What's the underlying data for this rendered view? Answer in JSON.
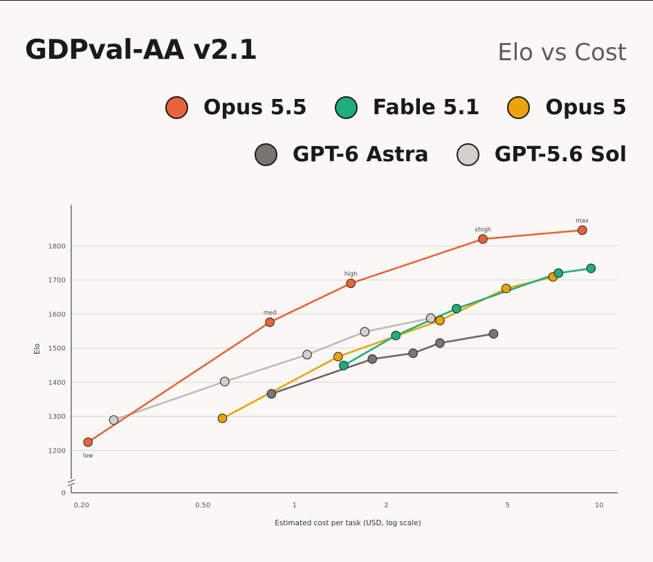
{
  "header": {
    "title": "GDPval-AA v2.1",
    "subtitle": "Elo vs Cost"
  },
  "legend": [
    {
      "name": "Opus 5.5",
      "color": "#e8643a"
    },
    {
      "name": "Fable 5.1",
      "color": "#1fae7a"
    },
    {
      "name": "Opus 5",
      "color": "#eca20a"
    },
    {
      "name": "GPT-6 Astra",
      "color": "#797672"
    },
    {
      "name": "GPT-5.6 Sol",
      "color": "#d2d0ca"
    }
  ],
  "chart_data": {
    "type": "line",
    "title": "GDPval-AA v2.1",
    "subtitle": "Elo vs Cost",
    "xlabel": "Estimated cost per task (USD, log scale)",
    "ylabel": "Elo",
    "x_scale": "log",
    "xlim": [
      0.185,
      11.5
    ],
    "ylim": [
      1100,
      1900
    ],
    "x_ticks": [
      0.2,
      0.5,
      1,
      2,
      5,
      10
    ],
    "x_tick_labels": [
      "0.20",
      "0.50",
      "1",
      "2",
      "5",
      "10"
    ],
    "y_ticks": [
      1200,
      1300,
      1400,
      1500,
      1600,
      1700,
      1800
    ],
    "y_tick_labels": [
      "1200",
      "1300",
      "1400",
      "1500",
      "1600",
      "1700",
      "1800"
    ],
    "y_zero_label": "0",
    "axis_break": true,
    "grid": "horizontal",
    "legend_position": "top-right",
    "series": [
      {
        "name": "Opus 5.5",
        "color": "#e8643a",
        "line_color": "#e8643a",
        "x": [
          0.21,
          0.83,
          1.53,
          4.15,
          8.8
        ],
        "y": [
          1224,
          1576,
          1690,
          1820,
          1846
        ],
        "point_labels": [
          "low",
          "med",
          "high",
          "xhigh",
          "max"
        ]
      },
      {
        "name": "Fable 5.1",
        "color": "#1fae7a",
        "line_color": "#1fae7a",
        "x": [
          1.45,
          2.15,
          3.4,
          7.35,
          9.4
        ],
        "y": [
          1449,
          1537,
          1616,
          1720,
          1734
        ]
      },
      {
        "name": "Opus 5",
        "color": "#eca20a",
        "line_color": "#eca20a",
        "x": [
          0.58,
          1.39,
          3.0,
          4.95,
          7.05
        ],
        "y": [
          1294,
          1475,
          1581,
          1675,
          1709
        ]
      },
      {
        "name": "GPT-6 Astra",
        "color": "#797672",
        "line_color": "#6a6763",
        "x": [
          0.84,
          1.8,
          2.45,
          3.0,
          4.5
        ],
        "y": [
          1366,
          1468,
          1485,
          1515,
          1542
        ]
      },
      {
        "name": "GPT-5.6 Sol",
        "color": "#d2d0ca",
        "line_color": "#bdbbb5",
        "x": [
          0.255,
          0.59,
          1.1,
          1.7,
          2.8
        ],
        "y": [
          1289,
          1402,
          1481,
          1548,
          1588
        ]
      }
    ]
  }
}
